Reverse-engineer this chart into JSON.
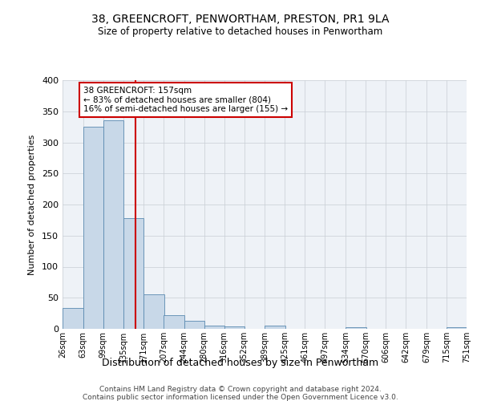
{
  "title": "38, GREENCROFT, PENWORTHAM, PRESTON, PR1 9LA",
  "subtitle": "Size of property relative to detached houses in Penwortham",
  "xlabel": "Distribution of detached houses by size in Penwortham",
  "ylabel": "Number of detached properties",
  "bar_color": "#c8d8e8",
  "bar_edge_color": "#5a8ab0",
  "vline_color": "#cc0000",
  "vline_x": 157,
  "bins": [
    26,
    63,
    99,
    135,
    171,
    207,
    244,
    280,
    316,
    352,
    389,
    425,
    461,
    497,
    534,
    570,
    606,
    642,
    679,
    715,
    751
  ],
  "counts": [
    33,
    325,
    336,
    178,
    56,
    22,
    13,
    5,
    4,
    0,
    5,
    0,
    0,
    0,
    3,
    0,
    0,
    0,
    0,
    3
  ],
  "annotation_text": "38 GREENCROFT: 157sqm\n← 83% of detached houses are smaller (804)\n16% of semi-detached houses are larger (155) →",
  "ylim": [
    0,
    400
  ],
  "yticks": [
    0,
    50,
    100,
    150,
    200,
    250,
    300,
    350,
    400
  ],
  "footer1": "Contains HM Land Registry data © Crown copyright and database right 2024.",
  "footer2": "Contains public sector information licensed under the Open Government Licence v3.0.",
  "bg_color": "#eef2f7",
  "grid_color": "#c8cdd4"
}
